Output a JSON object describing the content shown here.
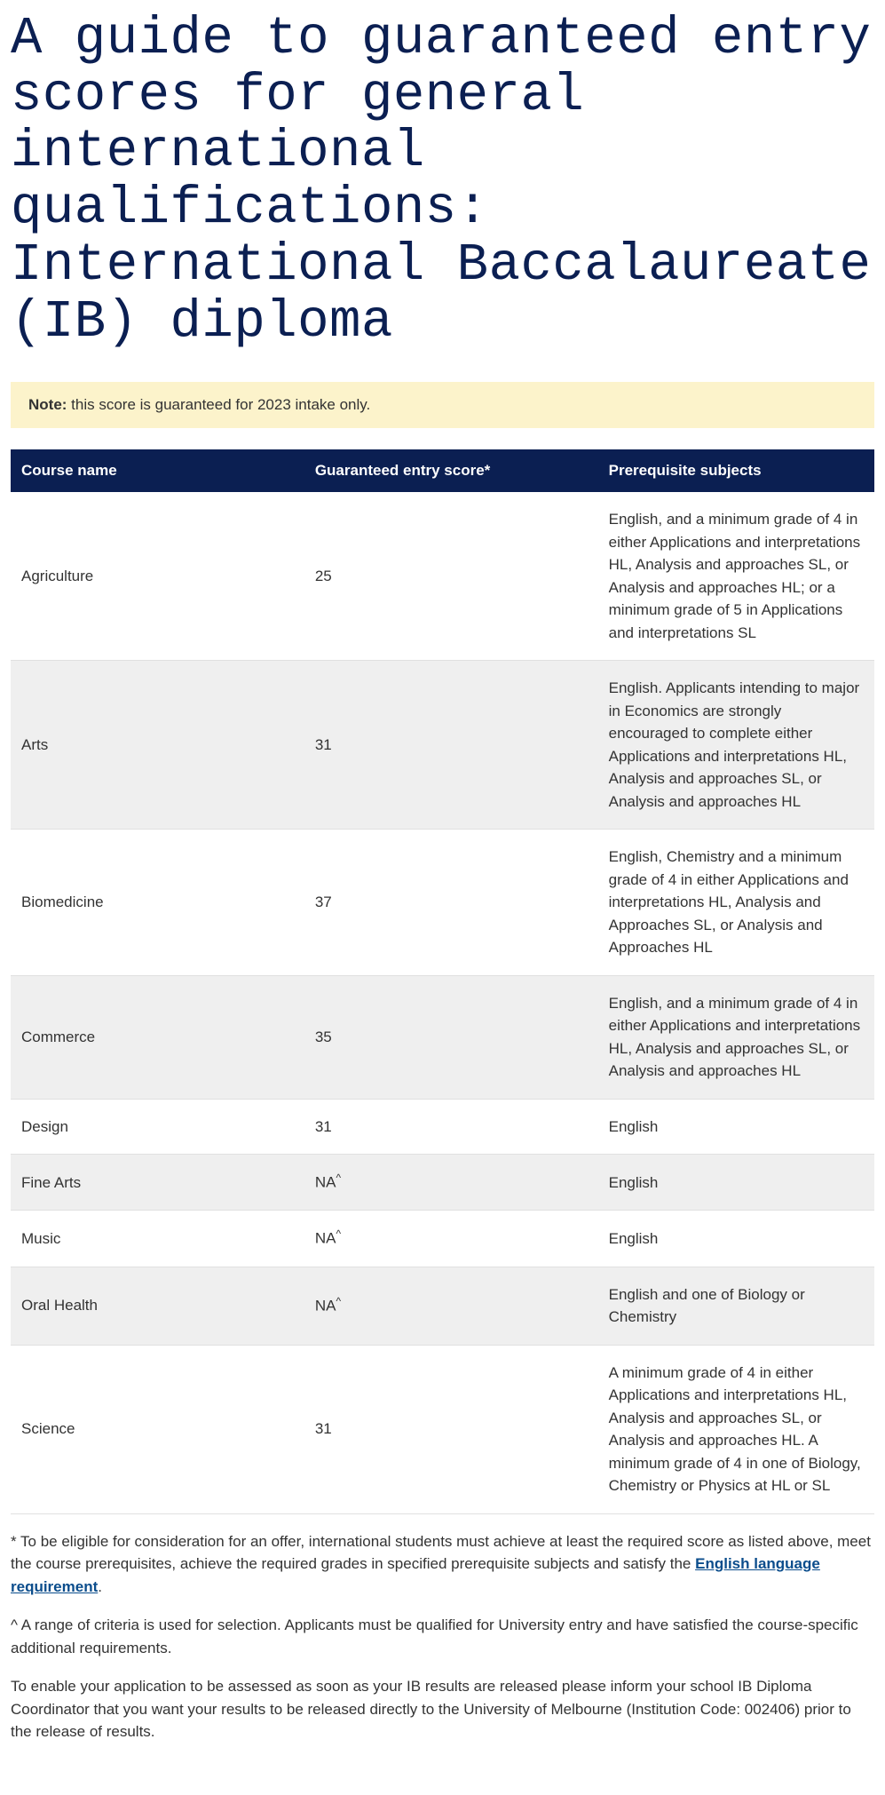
{
  "heading": "A guide to guaranteed entry scores for general international qualifications: International Baccalaureate (IB) diploma",
  "note": {
    "label": "Note:",
    "text": " this score is guaranteed for 2023 intake only."
  },
  "table": {
    "columns": [
      "Course name",
      "Guaranteed entry score*",
      "Prerequisite subjects"
    ],
    "rows": [
      {
        "course": "Agriculture",
        "score": "25",
        "prereq": "English, and a minimum grade of 4 in either Applications and interpretations HL, Analysis and approaches SL, or Analysis and approaches HL; or a minimum grade of 5 in Applications and interpretations SL"
      },
      {
        "course": "Arts",
        "score": "31",
        "prereq": "English. Applicants intending to major in Economics are strongly encouraged to complete either Applications and interpretations HL, Analysis and approaches SL, or Analysis and approaches HL"
      },
      {
        "course": "Biomedicine",
        "score": "37",
        "prereq": "English, Chemistry and a minimum grade of 4 in either Applications and interpretations HL, Analysis and Approaches SL, or Analysis and Approaches HL"
      },
      {
        "course": "Commerce",
        "score": "35",
        "prereq": "English, and a minimum grade of 4 in either Applications and interpretations HL, Analysis and approaches SL, or Analysis and approaches HL"
      },
      {
        "course": "Design",
        "score": "31",
        "prereq": "English"
      },
      {
        "course": "Fine Arts",
        "score": "NA^",
        "prereq": "English"
      },
      {
        "course": "Music",
        "score": "NA^",
        "prereq": "English"
      },
      {
        "course": "Oral Health",
        "score": "NA^",
        "prereq": "English and one of Biology or Chemistry"
      },
      {
        "course": "Science",
        "score": "31",
        "prereq": "A minimum grade of 4 in either Applications and interpretations HL, Analysis and approaches SL, or Analysis and approaches HL. A minimum grade of 4 in one of Biology, Chemistry or Physics at HL or SL"
      }
    ]
  },
  "footnotes": {
    "star_prefix": "* To be eligible for consideration for an offer, international students must achieve at least the required score as listed above, meet the course prerequisites, achieve the required grades in specified prerequisite subjects and satisfy the ",
    "star_link": "English language requirement",
    "star_suffix": ".",
    "caret": "^ A range of criteria is used for selection. Applicants must be qualified for University entry and have satisfied the course-specific additional requirements.",
    "para": "To enable your application to be assessed as soon as your IB results are released please inform your school IB Diploma Coordinator that you want your results to be released directly to the University of Melbourne (Institution Code: 002406) prior to the release of results."
  }
}
